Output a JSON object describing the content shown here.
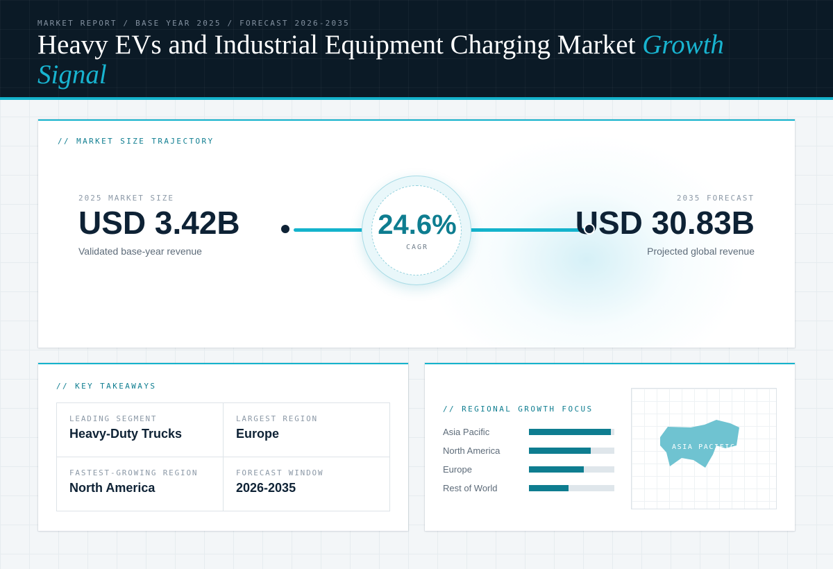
{
  "header": {
    "crumbs": "MARKET REPORT / BASE YEAR 2025 / FORECAST 2026-2035",
    "title_main": "Heavy EVs and Industrial Equipment Charging Market ",
    "title_accent": "Growth Signal"
  },
  "trajectory": {
    "label": "// MARKET SIZE TRAJECTORY",
    "start": {
      "label": "2025 MARKET SIZE",
      "value": "USD 3.42B",
      "sub": "Validated base-year revenue"
    },
    "end": {
      "label": "2035 FORECAST",
      "value": "USD 30.83B",
      "sub": "Projected global revenue"
    },
    "cagr": {
      "value": "24.6%",
      "label": "CAGR"
    }
  },
  "takeaways": {
    "label": "// KEY TAKEAWAYS",
    "items": [
      {
        "key": "LEADING SEGMENT",
        "value": "Heavy-Duty Trucks"
      },
      {
        "key": "LARGEST REGION",
        "value": "Europe"
      },
      {
        "key": "FASTEST-GROWING REGION",
        "value": "North America"
      },
      {
        "key": "FORECAST WINDOW",
        "value": "2026-2035"
      }
    ]
  },
  "regional": {
    "label": "// REGIONAL GROWTH FOCUS",
    "bars": [
      {
        "name": "Asia Pacific",
        "level": 0.96
      },
      {
        "name": "North America",
        "level": 0.72
      },
      {
        "name": "Europe",
        "level": 0.64
      },
      {
        "name": "Rest of World",
        "level": 0.46
      }
    ],
    "map_label": "ASIA PACIFIC"
  },
  "colors": {
    "accent": "#14b3cc",
    "accent_dark": "#0e7d90",
    "navy": "#0b1a26",
    "map_fill": "#6fc3d1"
  }
}
